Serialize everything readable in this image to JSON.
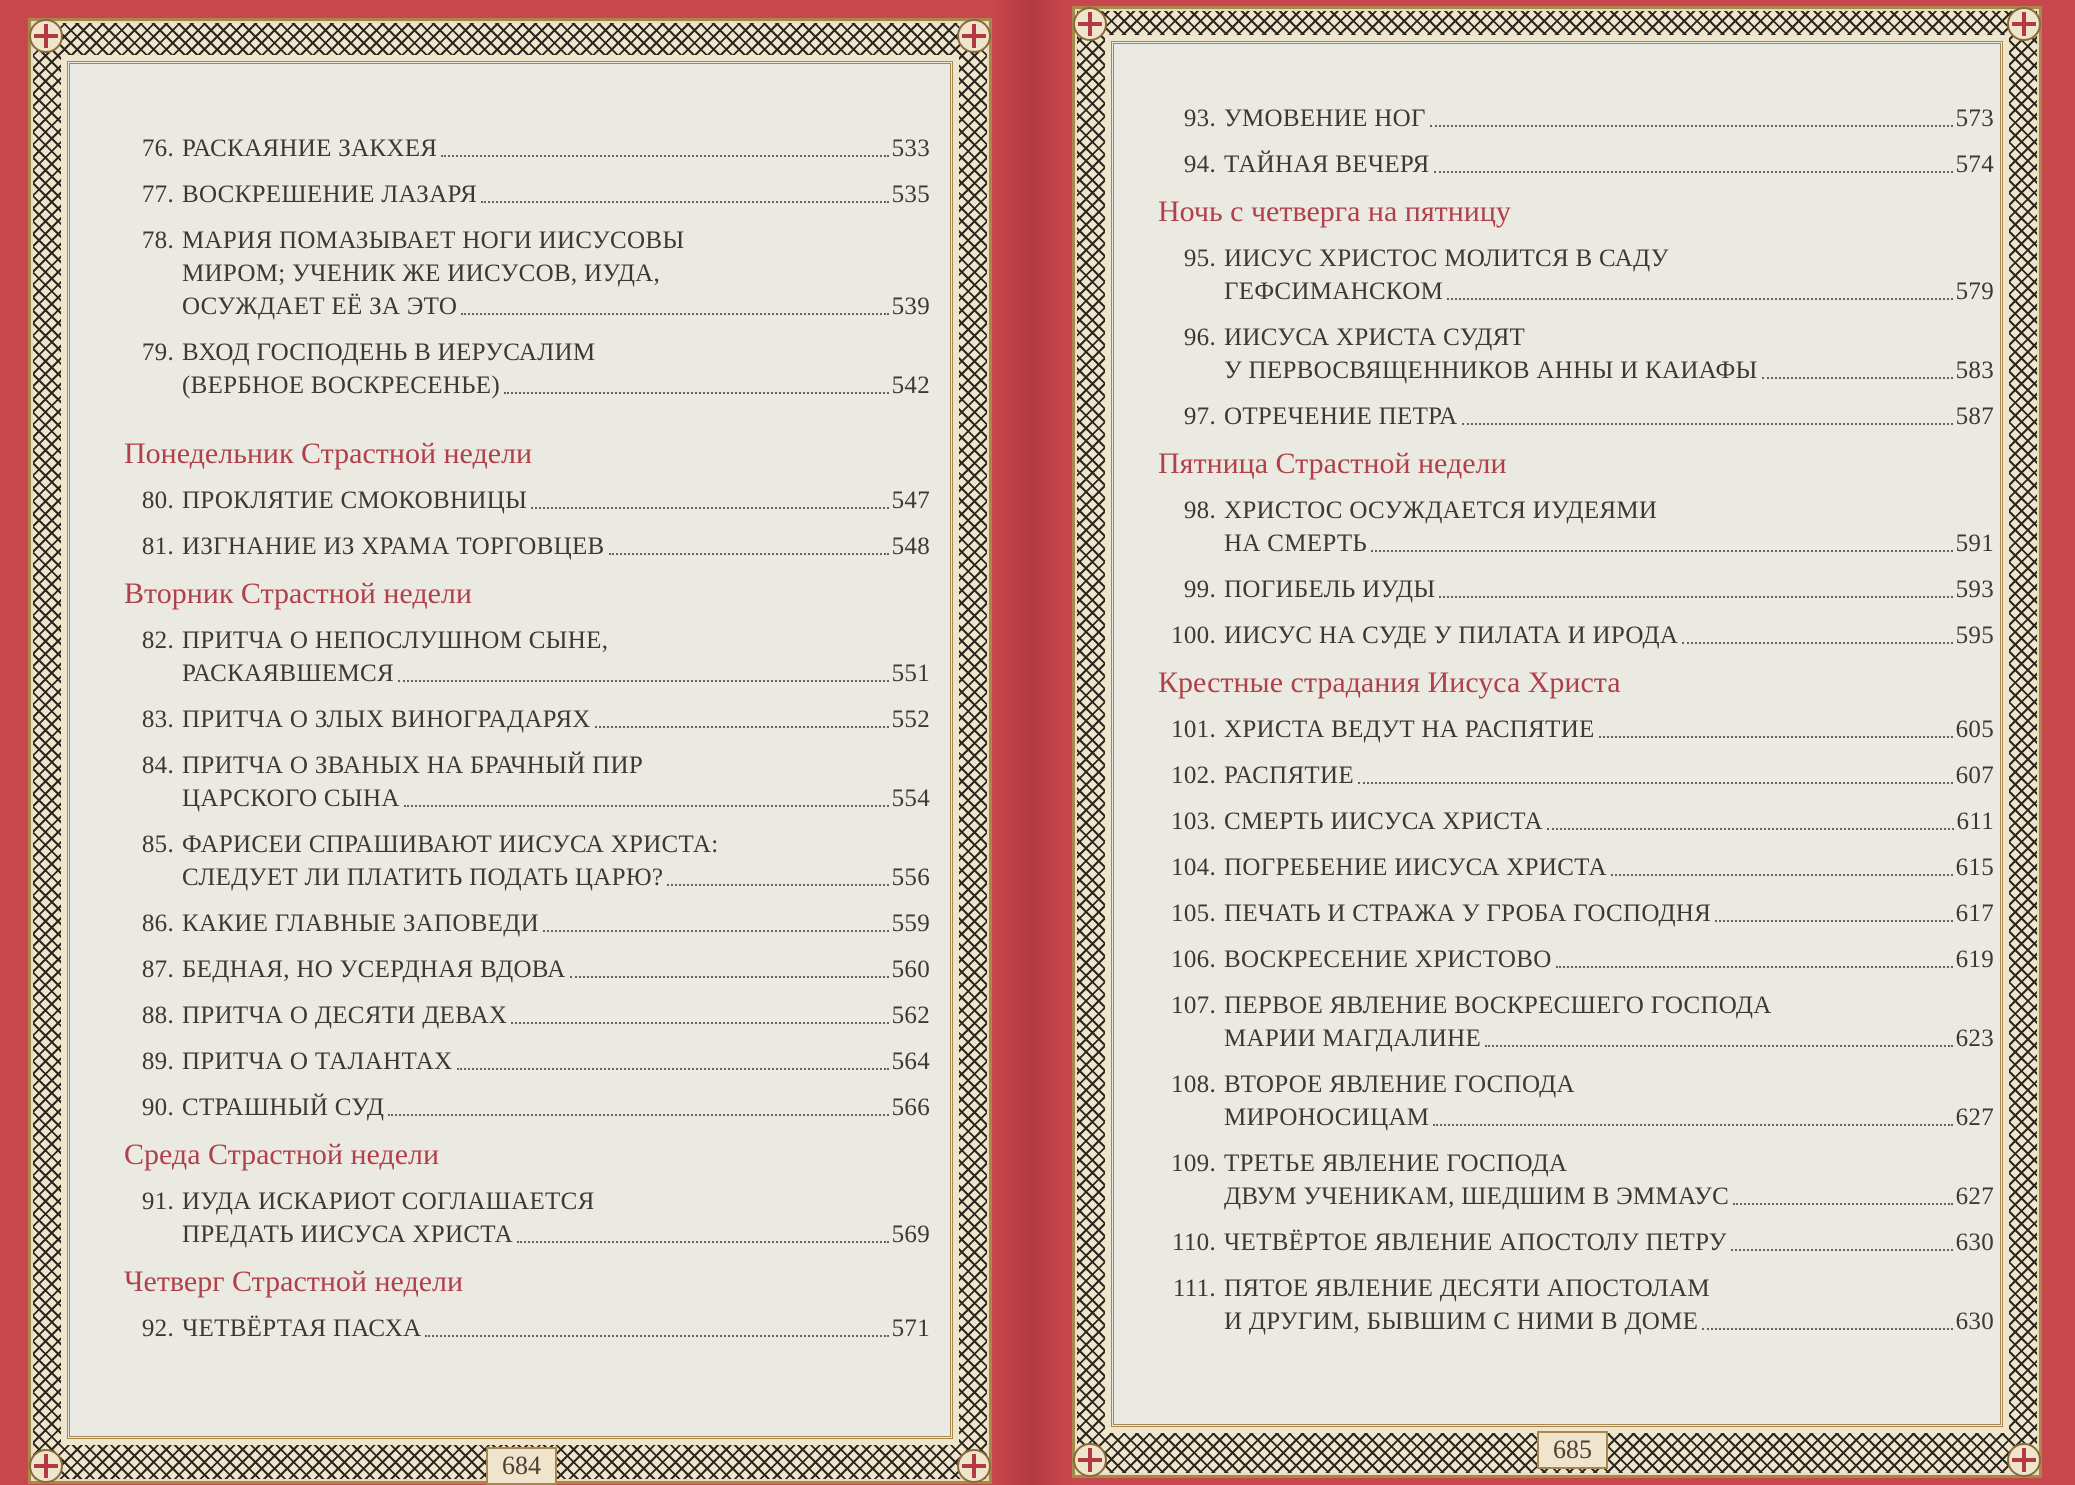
{
  "colors": {
    "cover": "#c8474d",
    "heading": "#b0404a",
    "text": "#3d3834",
    "paper": "#ebeae2"
  },
  "pages": [
    {
      "page_number": "684",
      "items": [
        {
          "type": "entry",
          "num": "76.",
          "lines": [
            "РАСКАЯНИЕ ЗАКХЕЯ"
          ],
          "page": "533"
        },
        {
          "type": "entry",
          "num": "77.",
          "lines": [
            "ВОСКРЕШЕНИЕ ЛАЗАРЯ"
          ],
          "page": "535"
        },
        {
          "type": "entry",
          "num": "78.",
          "lines": [
            "МАРИЯ ПОМАЗЫВАЕТ НОГИ ИИСУСОВЫ",
            "МИРОМ; УЧЕНИК ЖЕ ИИСУСОВ, ИУДА,",
            "ОСУЖДАЕТ ЕЁ ЗА ЭТО"
          ],
          "page": "539"
        },
        {
          "type": "entry",
          "num": "79.",
          "lines": [
            "ВХОД ГОСПОДЕНЬ В ИЕРУСАЛИМ",
            "(ВЕРБНОЕ ВОСКРЕСЕНЬЕ)"
          ],
          "page": "542"
        },
        {
          "type": "heading",
          "text": "Понедельник Страстной недели"
        },
        {
          "type": "entry",
          "num": "80.",
          "lines": [
            "ПРОКЛЯТИЕ СМОКОВНИЦЫ"
          ],
          "page": "547"
        },
        {
          "type": "entry",
          "num": "81.",
          "lines": [
            "ИЗГНАНИЕ ИЗ ХРАМА ТОРГОВЦЕВ"
          ],
          "page": "548"
        },
        {
          "type": "heading",
          "text": "Вторник Страстной недели"
        },
        {
          "type": "entry",
          "num": "82.",
          "lines": [
            "ПРИТЧА О НЕПОСЛУШНОМ СЫНЕ,",
            "РАСКАЯВШЕМСЯ"
          ],
          "page": "551"
        },
        {
          "type": "entry",
          "num": "83.",
          "lines": [
            "ПРИТЧА О ЗЛЫХ ВИНОГРАДАРЯХ"
          ],
          "page": "552"
        },
        {
          "type": "entry",
          "num": "84.",
          "lines": [
            "ПРИТЧА О ЗВАНЫХ НА БРАЧНЫЙ ПИР",
            "ЦАРСКОГО СЫНА"
          ],
          "page": "554"
        },
        {
          "type": "entry",
          "num": "85.",
          "lines": [
            "ФАРИСЕИ СПРАШИВАЮТ ИИСУСА ХРИСТА:",
            "СЛЕДУЕТ ЛИ ПЛАТИТЬ ПОДАТЬ ЦАРЮ?"
          ],
          "page": "556"
        },
        {
          "type": "entry",
          "num": "86.",
          "lines": [
            "КАКИЕ ГЛАВНЫЕ ЗАПОВЕДИ"
          ],
          "page": "559"
        },
        {
          "type": "entry",
          "num": "87.",
          "lines": [
            "БЕДНАЯ, НО УСЕРДНАЯ ВДОВА"
          ],
          "page": "560"
        },
        {
          "type": "entry",
          "num": "88.",
          "lines": [
            "ПРИТЧА О ДЕСЯТИ ДЕВАХ"
          ],
          "page": "562"
        },
        {
          "type": "entry",
          "num": "89.",
          "lines": [
            "ПРИТЧА О ТАЛАНТАХ"
          ],
          "page": "564"
        },
        {
          "type": "entry",
          "num": "90.",
          "lines": [
            "СТРАШНЫЙ СУД"
          ],
          "page": "566"
        },
        {
          "type": "heading",
          "text": "Среда Страстной недели"
        },
        {
          "type": "entry",
          "num": "91.",
          "lines": [
            "ИУДА ИСКАРИОТ СОГЛАШАЕТСЯ",
            "ПРЕДАТЬ ИИСУСА ХРИСТА"
          ],
          "page": "569"
        },
        {
          "type": "heading",
          "text": "Четверг Страстной недели"
        },
        {
          "type": "entry",
          "num": "92.",
          "lines": [
            "ЧЕТВЁРТАЯ ПАСХА"
          ],
          "page": "571"
        }
      ]
    },
    {
      "page_number": "685",
      "items": [
        {
          "type": "entry",
          "num": "93.",
          "lines": [
            "УМОВЕНИЕ НОГ"
          ],
          "page": "573"
        },
        {
          "type": "entry",
          "num": "94.",
          "lines": [
            "ТАЙНАЯ ВЕЧЕРЯ"
          ],
          "page": "574"
        },
        {
          "type": "heading",
          "text": "Ночь с четверга на пятницу"
        },
        {
          "type": "entry",
          "num": "95.",
          "lines": [
            "ИИСУС ХРИСТОС МОЛИТСЯ В САДУ",
            "ГЕФСИМАНСКОМ"
          ],
          "page": "579"
        },
        {
          "type": "entry",
          "num": "96.",
          "lines": [
            "ИИСУСА ХРИСТА СУДЯТ",
            "У ПЕРВОСВЯЩЕННИКОВ АННЫ И КАИАФЫ"
          ],
          "page": "583"
        },
        {
          "type": "entry",
          "num": "97.",
          "lines": [
            "ОТРЕЧЕНИЕ ПЕТРА"
          ],
          "page": "587"
        },
        {
          "type": "heading",
          "text": "Пятница Страстной недели"
        },
        {
          "type": "entry",
          "num": "98.",
          "lines": [
            "ХРИСТОС ОСУЖДАЕТСЯ ИУДЕЯМИ",
            "НА СМЕРТЬ"
          ],
          "page": "591"
        },
        {
          "type": "entry",
          "num": "99.",
          "lines": [
            "ПОГИБЕЛЬ ИУДЫ"
          ],
          "page": "593"
        },
        {
          "type": "entry",
          "num": "100.",
          "lines": [
            "ИИСУС НА СУДЕ У ПИЛАТА И ИРОДА"
          ],
          "page": "595"
        },
        {
          "type": "heading",
          "text": "Крестные страдания Иисуса Христа"
        },
        {
          "type": "entry",
          "num": "101.",
          "lines": [
            "ХРИСТА ВЕДУТ НА РАСПЯТИЕ"
          ],
          "page": "605"
        },
        {
          "type": "entry",
          "num": "102.",
          "lines": [
            "РАСПЯТИЕ"
          ],
          "page": "607"
        },
        {
          "type": "entry",
          "num": "103.",
          "lines": [
            "СМЕРТЬ ИИСУСА ХРИСТА"
          ],
          "page": "611"
        },
        {
          "type": "entry",
          "num": "104.",
          "lines": [
            "ПОГРЕБЕНИЕ ИИСУСА ХРИСТА"
          ],
          "page": "615"
        },
        {
          "type": "entry",
          "num": "105.",
          "lines": [
            "ПЕЧАТЬ И СТРАЖА У ГРОБА ГОСПОДНЯ"
          ],
          "page": "617"
        },
        {
          "type": "entry",
          "num": "106.",
          "lines": [
            "ВОСКРЕСЕНИЕ ХРИСТОВО"
          ],
          "page": "619"
        },
        {
          "type": "entry",
          "num": "107.",
          "lines": [
            "ПЕРВОЕ ЯВЛЕНИЕ ВОСКРЕСШЕГО ГОСПОДА",
            "МАРИИ МАГДАЛИНЕ"
          ],
          "page": "623"
        },
        {
          "type": "entry",
          "num": "108.",
          "lines": [
            "ВТОРОЕ ЯВЛЕНИЕ ГОСПОДА",
            "МИРОНОСИЦАМ"
          ],
          "page": "627"
        },
        {
          "type": "entry",
          "num": "109.",
          "lines": [
            "ТРЕТЬЕ ЯВЛЕНИЕ ГОСПОДА",
            "ДВУМ УЧЕНИКАМ, ШЕДШИМ В ЭММАУС"
          ],
          "page": "627"
        },
        {
          "type": "entry",
          "num": "110.",
          "lines": [
            "ЧЕТВЁРТОЕ ЯВЛЕНИЕ АПОСТОЛУ ПЕТРУ"
          ],
          "page": "630"
        },
        {
          "type": "entry",
          "num": "111.",
          "lines": [
            "ПЯТОЕ ЯВЛЕНИЕ ДЕСЯТИ АПОСТОЛАМ",
            "И ДРУГИМ, БЫВШИМ С НИМИ В ДОМЕ"
          ],
          "page": "630"
        }
      ]
    }
  ]
}
